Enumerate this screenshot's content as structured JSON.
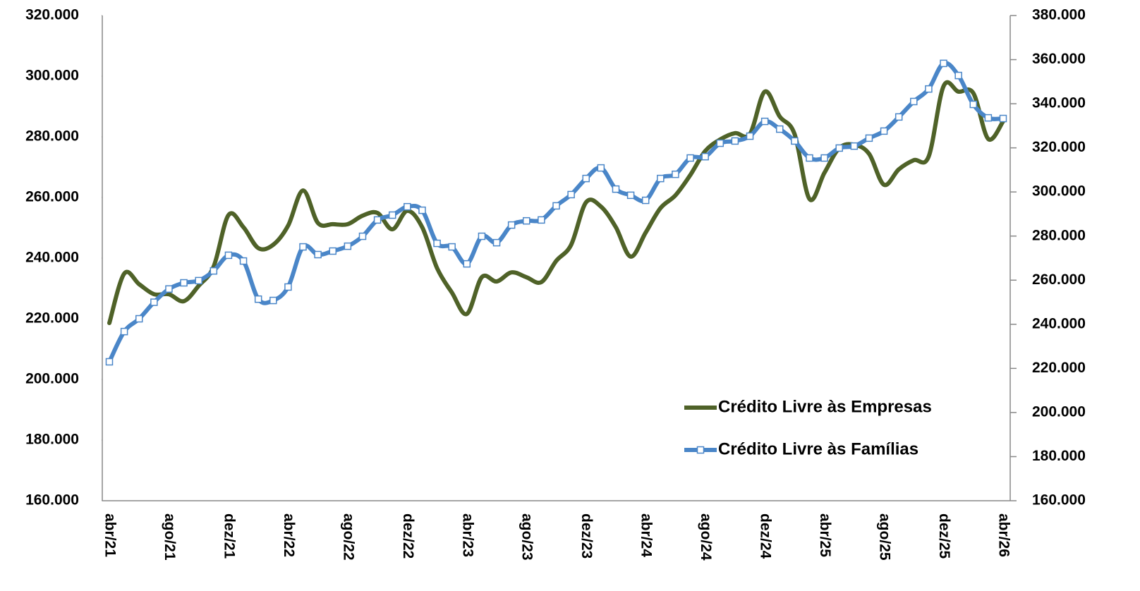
{
  "chart_data": {
    "type": "line",
    "categories": [
      "abr/21",
      null,
      null,
      null,
      "ago/21",
      null,
      null,
      null,
      "dez/21",
      null,
      null,
      null,
      "abr/22",
      null,
      null,
      null,
      "ago/22",
      null,
      null,
      null,
      "dez/22",
      null,
      null,
      null,
      "abr/23",
      null,
      null,
      null,
      "ago/23",
      null,
      null,
      null,
      "dez/23",
      null,
      null,
      null,
      "abr/24",
      null,
      null,
      null,
      "ago/24",
      null,
      null,
      null,
      "dez/24",
      null,
      null,
      null,
      "abr/25",
      null,
      null,
      null,
      "ago/25",
      null,
      null,
      null,
      "dez/25",
      null,
      null,
      null,
      "abr/26"
    ],
    "series": [
      {
        "name": "Crédito Livre às Empresas",
        "color": "#4f6228",
        "axis": "y",
        "values": [
          218600,
          234900,
          231400,
          228100,
          228100,
          225800,
          230900,
          237200,
          254200,
          250200,
          243300,
          244400,
          250700,
          262300,
          251600,
          251200,
          251200,
          254000,
          254900,
          249500,
          255600,
          250200,
          236700,
          228600,
          221600,
          233700,
          232300,
          235300,
          233700,
          232100,
          239100,
          244400,
          258400,
          257000,
          250200,
          240500,
          248400,
          256500,
          260700,
          267400,
          275300,
          279100,
          281200,
          280900,
          294900,
          286700,
          280900,
          259500,
          268100,
          276300,
          277400,
          274400,
          264200,
          269300,
          272300,
          273500,
          296700,
          294900,
          294400,
          279300,
          285100
        ]
      },
      {
        "name": "Crédito Livre às Famílias",
        "color": "#4a86c8",
        "axis": "y2",
        "values": [
          223000,
          236700,
          242500,
          250000,
          256000,
          258800,
          259800,
          264200,
          271300,
          268700,
          251400,
          250800,
          256900,
          275100,
          271600,
          273200,
          275400,
          279900,
          287300,
          289500,
          293300,
          291700,
          276700,
          275100,
          267400,
          279900,
          277000,
          285000,
          286900,
          287300,
          293700,
          298800,
          306100,
          310900,
          301300,
          298500,
          296200,
          306100,
          308000,
          315400,
          316000,
          322100,
          323100,
          325300,
          332000,
          328500,
          323100,
          315400,
          315400,
          319900,
          320800,
          324400,
          327600,
          334000,
          341000,
          346700,
          358300,
          352800,
          339700,
          333600,
          333300
        ]
      }
    ],
    "ylim": [
      160000,
      320000
    ],
    "yticks": [
      {
        "value": 160000,
        "label": "160.000"
      },
      {
        "value": 180000,
        "label": "180.000"
      },
      {
        "value": 200000,
        "label": "200.000"
      },
      {
        "value": 220000,
        "label": "220.000"
      },
      {
        "value": 240000,
        "label": "240.000"
      },
      {
        "value": 260000,
        "label": "260.000"
      },
      {
        "value": 280000,
        "label": "280.000"
      },
      {
        "value": 300000,
        "label": "300.000"
      },
      {
        "value": 320000,
        "label": "320.000"
      }
    ],
    "y2lim": [
      160000,
      380000
    ],
    "y2ticks": [
      {
        "value": 160000,
        "label": "160.000"
      },
      {
        "value": 180000,
        "label": "180.000"
      },
      {
        "value": 200000,
        "label": "200.000"
      },
      {
        "value": 220000,
        "label": "220.000"
      },
      {
        "value": 240000,
        "label": "240.000"
      },
      {
        "value": 260000,
        "label": "260.000"
      },
      {
        "value": 280000,
        "label": "280.000"
      },
      {
        "value": 300000,
        "label": "300.000"
      },
      {
        "value": 320000,
        "label": "320.000"
      },
      {
        "value": 340000,
        "label": "340.000"
      },
      {
        "value": 360000,
        "label": "360.000"
      },
      {
        "value": 380000,
        "label": "380.000"
      }
    ],
    "legend": "lower right"
  }
}
